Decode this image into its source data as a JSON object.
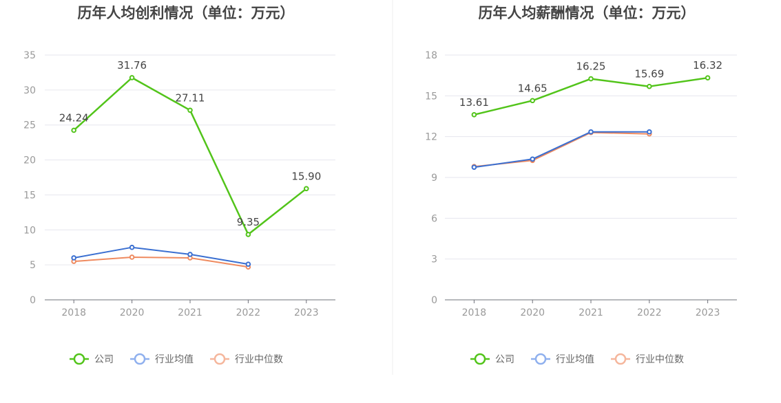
{
  "colors": {
    "company": "#52c41a",
    "industry_avg": "#3a6fd1",
    "industry_median": "#ef8a5f",
    "legend_avg": "#8fb0ee",
    "legend_median": "#f5b69c",
    "axis_text": "#999999",
    "grid": "#e6e6ee",
    "title": "#444444"
  },
  "chart_data": [
    {
      "type": "line",
      "title": "历年人均创利情况（单位：万元）",
      "categories": [
        "2018",
        "2020",
        "2021",
        "2022",
        "2023"
      ],
      "ylim": [
        0,
        35
      ],
      "yticks": [
        "0",
        "5",
        "10",
        "15",
        "20",
        "25",
        "30",
        "35"
      ],
      "series": [
        {
          "name": "公司",
          "values": [
            24.24,
            31.76,
            27.11,
            9.35,
            15.9
          ],
          "labels": [
            "24.24",
            "31.76",
            "27.11",
            "9.35",
            "15.90"
          ]
        },
        {
          "name": "行业均值",
          "values": [
            6.0,
            7.5,
            6.5,
            5.1,
            null
          ]
        },
        {
          "name": "行业中位数",
          "values": [
            5.5,
            6.1,
            6.0,
            4.7,
            null
          ]
        }
      ]
    },
    {
      "type": "line",
      "title": "历年人均薪酬情况（单位：万元）",
      "categories": [
        "2018",
        "2020",
        "2021",
        "2022",
        "2023"
      ],
      "ylim": [
        0,
        18
      ],
      "yticks": [
        "0",
        "3",
        "6",
        "9",
        "12",
        "15",
        "18"
      ],
      "series": [
        {
          "name": "公司",
          "values": [
            13.61,
            14.65,
            16.25,
            15.69,
            16.32
          ],
          "labels": [
            "13.61",
            "14.65",
            "16.25",
            "15.69",
            "16.32"
          ]
        },
        {
          "name": "行业均值",
          "values": [
            9.75,
            10.35,
            12.35,
            12.35,
            null
          ]
        },
        {
          "name": "行业中位数",
          "values": [
            9.8,
            10.25,
            12.3,
            12.2,
            null
          ]
        }
      ]
    }
  ],
  "legend": [
    "公司",
    "行业均值",
    "行业中位数"
  ]
}
